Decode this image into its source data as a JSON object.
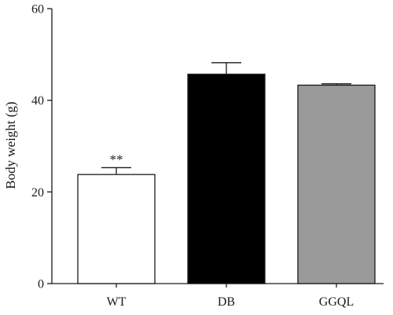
{
  "chart_data": {
    "type": "bar",
    "categories": [
      "WT",
      "DB",
      "GGQL"
    ],
    "values": [
      23.8,
      45.7,
      43.3
    ],
    "errors": [
      1.5,
      2.5,
      0.3
    ],
    "bar_colors": [
      "#ffffff",
      "#000000",
      "#9a9a9a"
    ],
    "annotations": [
      {
        "category": "WT",
        "text": "**"
      }
    ],
    "title": "",
    "xlabel": "",
    "ylabel": "Body weight (g)",
    "ylim": [
      0,
      60
    ],
    "yticks": [
      0,
      20,
      40,
      60
    ],
    "grid": false,
    "legend": "none"
  }
}
